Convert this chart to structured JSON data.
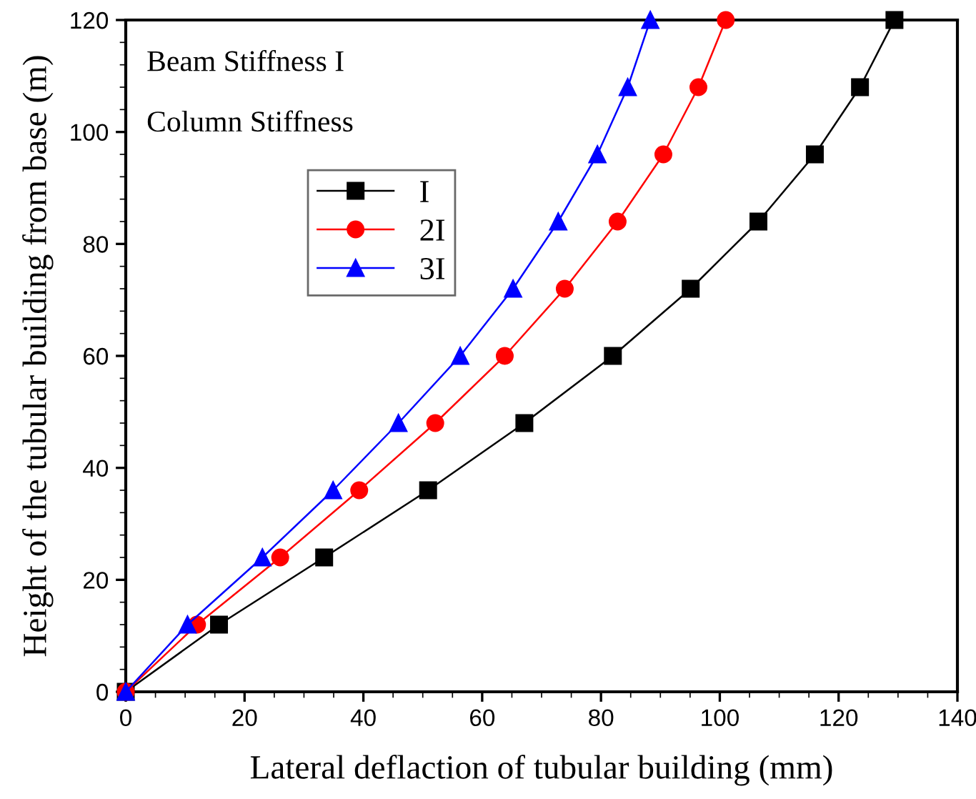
{
  "chart_data": {
    "type": "line",
    "xlabel": "Lateral deflaction of tubular building (mm)",
    "ylabel": "Height of the tubular building from base (m)",
    "annotations": [
      "Beam Stiffness I",
      "Column Stiffness"
    ],
    "series": [
      {
        "name": "I",
        "color": "#000000",
        "marker": "square",
        "x": [
          0,
          15.7,
          33.4,
          50.9,
          67.1,
          82.0,
          95.1,
          106.5,
          116.0,
          123.6,
          129.4
        ],
        "values": [
          0,
          12,
          24,
          36,
          48,
          60,
          72,
          84,
          96,
          108,
          120
        ]
      },
      {
        "name": "2I",
        "color": "#ff0000",
        "marker": "circle",
        "x": [
          0,
          12.0,
          26.0,
          39.3,
          52.1,
          63.8,
          73.9,
          82.8,
          90.5,
          96.4,
          101.0
        ],
        "values": [
          0,
          12,
          24,
          36,
          48,
          60,
          72,
          84,
          96,
          108,
          120
        ]
      },
      {
        "name": "3I",
        "color": "#0000ff",
        "marker": "triangle",
        "x": [
          0,
          10.4,
          23.0,
          34.9,
          45.9,
          56.3,
          65.2,
          72.8,
          79.4,
          84.5,
          88.3
        ],
        "values": [
          0,
          12,
          24,
          36,
          48,
          60,
          72,
          84,
          96,
          108,
          120
        ]
      }
    ],
    "xlim": [
      0,
      140
    ],
    "xticks": [
      0,
      20,
      40,
      60,
      80,
      100,
      120,
      140
    ],
    "ylim": [
      0,
      120
    ],
    "yticks": [
      0,
      20,
      40,
      60,
      80,
      100,
      120
    ],
    "legend": "top left",
    "grid": false,
    "line_style": "solid"
  }
}
